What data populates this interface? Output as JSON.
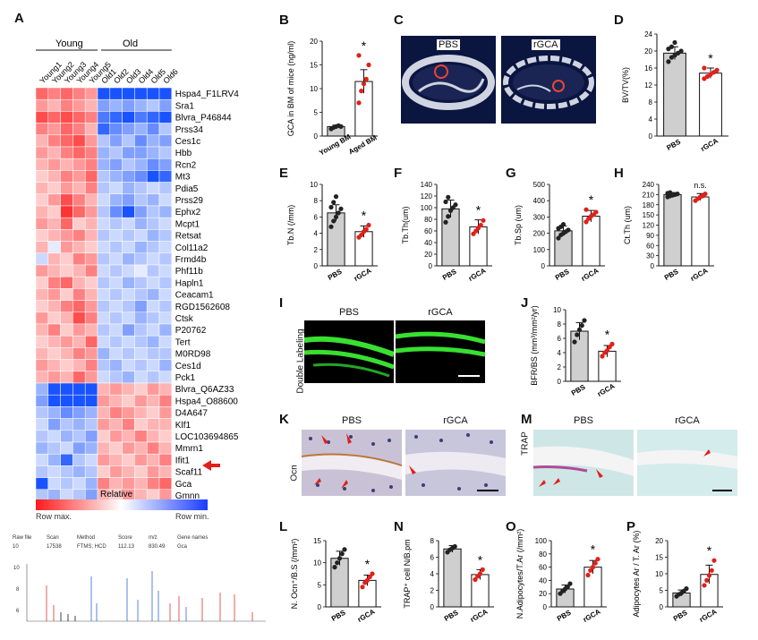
{
  "panel_letters": {
    "A": "A",
    "B": "B",
    "C": "C",
    "D": "D",
    "E": "E",
    "F": "F",
    "G": "G",
    "H": "H",
    "I": "I",
    "J": "J",
    "K": "K",
    "L": "L",
    "M": "M",
    "N": "N",
    "O": "O",
    "P": "P"
  },
  "heatmap": {
    "group_young": "Young",
    "group_old": "Old",
    "samples": [
      "Young1",
      "Young2",
      "Young3",
      "Young4",
      "Young5",
      "Old1",
      "Old2",
      "Old3",
      "Old4",
      "Old5",
      "Old6"
    ],
    "genes": [
      "Hspa4_F1LRV4",
      "Sra1",
      "Blvra_P46844",
      "Prss34",
      "Ces1c",
      "Hbb",
      "Rcn2",
      "Mt3",
      "Pdia5",
      "Prss29",
      "Ephx2",
      "Mcpt1",
      "Retsat",
      "Col11a2",
      "Frmd4b",
      "Phf11b",
      "Hapln1",
      "Ceacam1",
      "RGD1562608",
      "Ctsk",
      "P20762",
      "Tert",
      "M0RD98",
      "Ces1d",
      "Pck1",
      "Blvra_Q6AZ33",
      "Hspa4_O88600",
      "D4A647",
      "Klf1",
      "LOC103694865",
      "Mmrn1",
      "Ifit1",
      "Scaf11",
      "Gca",
      "Gmnn"
    ],
    "values": [
      [
        0.6,
        0.5,
        0.6,
        0.5,
        0.4,
        -0.9,
        -0.9,
        -0.9,
        -0.9,
        -0.9,
        -0.9
      ],
      [
        0.4,
        0.3,
        0.5,
        0.4,
        0.3,
        -0.5,
        -0.4,
        -0.5,
        -0.4,
        -0.3,
        -0.5
      ],
      [
        0.7,
        0.6,
        0.7,
        0.6,
        0.5,
        -0.7,
        -0.8,
        -0.9,
        -0.7,
        -0.8,
        -0.9
      ],
      [
        0.5,
        0.4,
        0.6,
        0.5,
        0.3,
        -0.8,
        -0.6,
        -0.5,
        -0.4,
        -0.6,
        -0.3
      ],
      [
        0.3,
        0.5,
        0.6,
        0.7,
        0.4,
        -0.3,
        -0.5,
        -0.3,
        -0.6,
        -0.4,
        -0.5
      ],
      [
        0.4,
        0.3,
        0.5,
        0.6,
        0.5,
        -0.4,
        -0.3,
        -0.5,
        -0.5,
        -0.4,
        -0.3
      ],
      [
        0.3,
        0.4,
        0.3,
        0.4,
        0.5,
        -0.4,
        -0.5,
        -0.3,
        -0.4,
        -0.6,
        -0.5
      ],
      [
        0.2,
        0.3,
        0.5,
        0.4,
        0.6,
        -0.3,
        -0.4,
        -0.5,
        -0.6,
        -0.9,
        -0.8
      ],
      [
        0.3,
        0.2,
        0.4,
        0.3,
        0.5,
        -0.3,
        -0.2,
        -0.4,
        -0.3,
        -0.2,
        -0.3
      ],
      [
        0.2,
        0.4,
        0.7,
        0.5,
        0.3,
        -0.2,
        -0.4,
        -0.5,
        -0.3,
        -0.4,
        -0.2
      ],
      [
        0.3,
        0.2,
        0.8,
        0.6,
        0.4,
        -0.3,
        -0.6,
        -0.9,
        -0.5,
        -0.3,
        -0.4
      ],
      [
        0.4,
        0.3,
        0.6,
        0.2,
        0.3,
        -0.2,
        -0.3,
        -0.2,
        -0.4,
        -0.3,
        -0.2
      ],
      [
        0.2,
        0.3,
        0.4,
        0.5,
        0.3,
        -0.3,
        -0.2,
        -0.3,
        -0.2,
        -0.4,
        -0.3
      ],
      [
        0.3,
        -0.1,
        0.4,
        0.3,
        0.2,
        -0.2,
        -0.3,
        -0.2,
        -0.4,
        -0.3,
        -0.2
      ],
      [
        -0.2,
        0.3,
        0.2,
        0.5,
        0.4,
        -0.3,
        -0.2,
        -0.4,
        -0.3,
        -0.2,
        -0.3
      ],
      [
        0.4,
        0.3,
        0.2,
        0.3,
        0.5,
        -0.2,
        -0.3,
        -0.2,
        -0.1,
        -0.3,
        -0.2
      ],
      [
        0.2,
        0.5,
        0.6,
        0.3,
        0.2,
        -0.3,
        -0.2,
        -0.4,
        -0.3,
        -0.2,
        -0.3
      ],
      [
        0.3,
        0.4,
        0.2,
        0.5,
        0.3,
        -0.2,
        -0.3,
        -0.2,
        -0.3,
        -0.4,
        -0.2
      ],
      [
        0.2,
        0.3,
        0.5,
        0.6,
        0.4,
        -0.3,
        -0.2,
        -0.3,
        -0.5,
        -0.2,
        -0.3
      ],
      [
        0.4,
        0.2,
        0.3,
        0.7,
        0.5,
        -0.2,
        -0.3,
        -0.2,
        -0.4,
        -0.3,
        -0.2
      ],
      [
        0.3,
        0.5,
        0.2,
        0.4,
        0.3,
        -0.3,
        -0.2,
        -0.5,
        -0.3,
        -0.2,
        -0.4
      ],
      [
        0.2,
        0.3,
        0.4,
        0.3,
        0.6,
        -0.2,
        -0.3,
        -0.2,
        -0.3,
        -0.4,
        -0.2
      ],
      [
        0.3,
        0.2,
        0.3,
        0.5,
        0.4,
        -0.4,
        -0.2,
        -0.3,
        -0.2,
        -0.3,
        -0.3
      ],
      [
        0.4,
        0.3,
        0.2,
        0.3,
        0.5,
        -0.3,
        -0.4,
        -0.2,
        -0.3,
        -0.2,
        -0.4
      ],
      [
        0.3,
        0.4,
        0.3,
        0.6,
        0.4,
        -0.2,
        -0.3,
        -0.4,
        -0.2,
        -0.3,
        -0.2
      ],
      [
        -0.4,
        -0.9,
        -0.9,
        -0.9,
        -0.9,
        0.3,
        0.4,
        0.3,
        0.2,
        0.4,
        0.3
      ],
      [
        -0.5,
        -0.9,
        -0.9,
        -0.9,
        -0.9,
        0.4,
        0.3,
        0.2,
        0.4,
        0.3,
        0.5
      ],
      [
        -0.3,
        -0.4,
        -0.6,
        -0.5,
        -0.4,
        0.3,
        0.5,
        0.4,
        0.3,
        0.2,
        0.4
      ],
      [
        -0.2,
        -0.5,
        -0.3,
        -0.4,
        -0.3,
        0.4,
        0.3,
        0.5,
        0.2,
        0.3,
        0.3
      ],
      [
        -0.3,
        -0.2,
        -0.4,
        -0.3,
        -0.5,
        0.2,
        0.4,
        0.3,
        0.5,
        0.3,
        0.2
      ],
      [
        -0.4,
        -0.3,
        -0.2,
        -0.5,
        -0.4,
        0.3,
        0.2,
        0.4,
        0.3,
        0.5,
        0.3
      ],
      [
        -0.2,
        -0.4,
        -0.8,
        -0.3,
        -0.2,
        0.4,
        0.3,
        0.2,
        0.4,
        0.3,
        0.5
      ],
      [
        -0.3,
        -0.2,
        -0.3,
        -0.4,
        -0.3,
        0.2,
        0.4,
        0.3,
        0.2,
        0.4,
        0.3
      ],
      [
        -0.9,
        -0.2,
        -0.3,
        -0.2,
        -0.4,
        0.5,
        0.3,
        0.4,
        0.3,
        0.5,
        0.6
      ],
      [
        -0.3,
        -0.4,
        -0.2,
        -0.3,
        -0.5,
        0.3,
        0.2,
        0.4,
        0.3,
        0.2,
        0.4
      ]
    ],
    "legend_title": "Relative",
    "legend_left": "Row max.",
    "legend_right": "Row min."
  },
  "ms": {
    "headers": [
      "Raw file",
      "Scan",
      "Method",
      "Score",
      "m/z",
      "Gene names"
    ],
    "values": [
      "10",
      "17538",
      "FTMS; HCD",
      "112.13",
      "830.49",
      "Gca"
    ]
  },
  "micro": {
    "C_pbs": "PBS",
    "C_rgca": "rGCA",
    "I_pbs": "PBS",
    "I_rgca": "rGCA",
    "I_side": "Double Labeling",
    "K_pbs": "PBS",
    "K_rgca": "rGCA",
    "K_side": "Ocn",
    "M_pbs": "PBS",
    "M_rgca": "rGCA",
    "M_side": "TRAP"
  },
  "chart_data": [
    {
      "id": "B",
      "type": "bar",
      "categories": [
        "Young BM",
        "Aged BM"
      ],
      "values": [
        2,
        11.5
      ],
      "errors": [
        0.3,
        2.5
      ],
      "ylabel": "GCA in BM of mice (ng/ml)",
      "ylim": [
        0,
        20
      ],
      "yticks": [
        0,
        5,
        10,
        15,
        20
      ],
      "sig": "*",
      "points": [
        [
          1.5,
          1.8,
          2.0,
          2.2,
          2.0
        ],
        [
          7,
          9.5,
          11,
          12,
          15,
          17
        ]
      ]
    },
    {
      "id": "D",
      "type": "bar",
      "categories": [
        "PBS",
        "rGCA"
      ],
      "values": [
        19.5,
        14.8
      ],
      "errors": [
        1.5,
        1.2
      ],
      "ylabel": "BV/TV(%)",
      "ylim": [
        0,
        24
      ],
      "yticks": [
        0,
        4,
        8,
        12,
        16,
        20,
        24
      ],
      "sig": "*",
      "points": [
        [
          17.5,
          18.5,
          19,
          19.5,
          20,
          20.5,
          21,
          22
        ],
        [
          13.5,
          14,
          14.5,
          15,
          15.5,
          16
        ]
      ]
    },
    {
      "id": "E",
      "type": "bar",
      "categories": [
        "PBS",
        "rGCA"
      ],
      "values": [
        6.5,
        4.2
      ],
      "errors": [
        1.0,
        0.7
      ],
      "ylabel": "Tb.N (/mm)",
      "ylim": [
        0,
        10
      ],
      "yticks": [
        0,
        2,
        4,
        6,
        8,
        10
      ],
      "sig": "*",
      "points": [
        [
          4.8,
          5.5,
          6,
          6.5,
          7,
          7.2,
          7.8,
          8.5
        ],
        [
          3.5,
          3.8,
          4.2,
          4.5,
          5
        ]
      ]
    },
    {
      "id": "F",
      "type": "bar",
      "categories": [
        "PBS",
        "rGCA"
      ],
      "values": [
        98,
        67
      ],
      "errors": [
        15,
        12
      ],
      "ylabel": "Tb.Th(um)",
      "ylim": [
        0,
        140
      ],
      "yticks": [
        0,
        20,
        40,
        60,
        80,
        100,
        120,
        140
      ],
      "sig": "*",
      "points": [
        [
          75,
          85,
          95,
          100,
          105,
          110,
          118
        ],
        [
          55,
          60,
          65,
          70,
          78
        ]
      ]
    },
    {
      "id": "G",
      "type": "bar",
      "categories": [
        "PBS",
        "rGCA"
      ],
      "values": [
        215,
        305
      ],
      "errors": [
        30,
        35
      ],
      "ylabel": "Tb.Sp (um)",
      "ylim": [
        0,
        500
      ],
      "yticks": [
        0,
        100,
        200,
        300,
        400,
        500
      ],
      "sig": "*",
      "points": [
        [
          170,
          190,
          200,
          210,
          220,
          230,
          240,
          255
        ],
        [
          270,
          290,
          305,
          315,
          330,
          345
        ]
      ]
    },
    {
      "id": "H",
      "type": "bar",
      "categories": [
        "PBS",
        "rGCA"
      ],
      "values": [
        210,
        203
      ],
      "errors": [
        6,
        10
      ],
      "ylabel": "Ct.Th (um)",
      "ylim": [
        0,
        240
      ],
      "yticks": [
        0,
        30,
        60,
        90,
        120,
        150,
        180,
        210,
        240
      ],
      "sig": "n.s.",
      "points": [
        [
          203,
          206,
          208,
          210,
          212,
          214,
          216
        ],
        [
          192,
          198,
          203,
          206,
          212
        ]
      ]
    },
    {
      "id": "J",
      "type": "bar",
      "categories": [
        "PBS",
        "rGCA"
      ],
      "values": [
        7,
        4.2
      ],
      "errors": [
        1.2,
        0.8
      ],
      "ylabel": "BFR/BS (mm³/mm²/yr)",
      "ylim": [
        0,
        10
      ],
      "yticks": [
        0,
        2,
        4,
        6,
        8,
        10
      ],
      "sig": "*",
      "points": [
        [
          5.5,
          6.5,
          7.2,
          7.8,
          8.5
        ],
        [
          3.5,
          4,
          4.3,
          4.8,
          5.2
        ]
      ]
    },
    {
      "id": "L",
      "type": "bar",
      "categories": [
        "PBS",
        "rGCA"
      ],
      "values": [
        11,
        6
      ],
      "errors": [
        1.6,
        1.2
      ],
      "ylabel": "N. Ocn⁺/B.S (/mm²)",
      "ylim": [
        0,
        15
      ],
      "yticks": [
        0,
        5,
        10,
        15
      ],
      "sig": "*",
      "points": [
        [
          9,
          10,
          11,
          12,
          13
        ],
        [
          4.5,
          5.5,
          6,
          6.8,
          7.5
        ]
      ]
    },
    {
      "id": "N",
      "type": "bar",
      "categories": [
        "PBS",
        "rGCA"
      ],
      "values": [
        7.0,
        3.9
      ],
      "errors": [
        0.4,
        0.6
      ],
      "ylabel": "TRAP⁺ cell N/B.pm",
      "ylim": [
        0,
        8
      ],
      "yticks": [
        0,
        2,
        4,
        6,
        8
      ],
      "sig": "*",
      "points": [
        [
          6.6,
          6.9,
          7.1,
          7.3
        ],
        [
          3.3,
          3.7,
          4,
          4.5
        ]
      ]
    },
    {
      "id": "O",
      "type": "bar",
      "categories": [
        "PBS",
        "rGCA"
      ],
      "values": [
        27,
        60
      ],
      "errors": [
        6,
        10
      ],
      "ylabel": "N.Adipocytes/T.Ar (/mm²)",
      "ylim": [
        0,
        100
      ],
      "yticks": [
        0,
        20,
        40,
        60,
        80,
        100
      ],
      "sig": "*",
      "points": [
        [
          20,
          24,
          27,
          30,
          35
        ],
        [
          48,
          55,
          60,
          66,
          72
        ]
      ]
    },
    {
      "id": "P",
      "type": "bar",
      "categories": [
        "PBS",
        "rGCA"
      ],
      "values": [
        4.2,
        9.8
      ],
      "errors": [
        0.9,
        2.8
      ],
      "ylabel": "Adipocytes Ar / T. Ar (%)",
      "ylim": [
        0,
        20
      ],
      "yticks": [
        0,
        5,
        10,
        15,
        20
      ],
      "sig": "*",
      "points": [
        [
          3.2,
          3.8,
          4.2,
          4.8,
          5.5
        ],
        [
          6.5,
          8,
          9.5,
          11,
          14
        ]
      ]
    }
  ]
}
